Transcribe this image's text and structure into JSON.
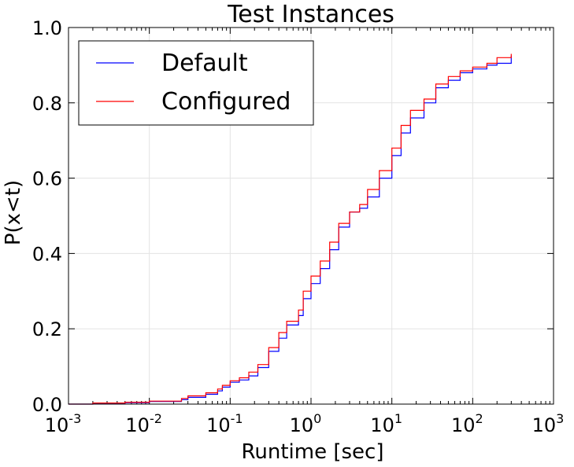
{
  "chart_data": {
    "type": "line",
    "title": "Test Instances",
    "xlabel": "Runtime [sec]",
    "ylabel": "P(x<t)",
    "xscale": "log",
    "xlim": [
      0.001,
      1000
    ],
    "ylim": [
      0.0,
      1.0
    ],
    "grid": true,
    "legend_position": "top-left",
    "x_ticks": [
      {
        "value": 0.001,
        "base": "10",
        "exp": "-3"
      },
      {
        "value": 0.01,
        "base": "10",
        "exp": "-2"
      },
      {
        "value": 0.1,
        "base": "10",
        "exp": "-1"
      },
      {
        "value": 1,
        "base": "10",
        "exp": "0"
      },
      {
        "value": 10,
        "base": "10",
        "exp": "1"
      },
      {
        "value": 100,
        "base": "10",
        "exp": "2"
      },
      {
        "value": 1000,
        "base": "10",
        "exp": "3"
      }
    ],
    "y_ticks": [
      {
        "value": 0.0,
        "label": "0.0"
      },
      {
        "value": 0.2,
        "label": "0.2"
      },
      {
        "value": 0.4,
        "label": "0.4"
      },
      {
        "value": 0.6,
        "label": "0.6"
      },
      {
        "value": 0.8,
        "label": "0.8"
      },
      {
        "value": 1.0,
        "label": "1.0"
      }
    ],
    "series": [
      {
        "name": "Default",
        "color": "#0000ff",
        "points": [
          [
            0.001,
            0.0
          ],
          [
            0.002,
            0.002
          ],
          [
            0.005,
            0.004
          ],
          [
            0.01,
            0.007
          ],
          [
            0.025,
            0.012
          ],
          [
            0.03,
            0.018
          ],
          [
            0.05,
            0.026
          ],
          [
            0.07,
            0.035
          ],
          [
            0.08,
            0.045
          ],
          [
            0.1,
            0.058
          ],
          [
            0.13,
            0.064
          ],
          [
            0.17,
            0.075
          ],
          [
            0.22,
            0.097
          ],
          [
            0.3,
            0.14
          ],
          [
            0.4,
            0.175
          ],
          [
            0.5,
            0.21
          ],
          [
            0.7,
            0.235
          ],
          [
            0.8,
            0.28
          ],
          [
            1.0,
            0.32
          ],
          [
            1.3,
            0.36
          ],
          [
            1.7,
            0.41
          ],
          [
            2.2,
            0.47
          ],
          [
            3.0,
            0.51
          ],
          [
            4.0,
            0.52
          ],
          [
            5.0,
            0.55
          ],
          [
            7.0,
            0.6
          ],
          [
            10.0,
            0.66
          ],
          [
            13.0,
            0.72
          ],
          [
            17.0,
            0.76
          ],
          [
            25.0,
            0.8
          ],
          [
            35.0,
            0.84
          ],
          [
            50.0,
            0.86
          ],
          [
            70.0,
            0.88
          ],
          [
            100.0,
            0.89
          ],
          [
            150.0,
            0.9
          ],
          [
            200.0,
            0.905
          ],
          [
            300.0,
            0.925
          ]
        ]
      },
      {
        "name": "Configured",
        "color": "#ff0000",
        "points": [
          [
            0.001,
            0.0
          ],
          [
            0.002,
            0.003
          ],
          [
            0.005,
            0.005
          ],
          [
            0.01,
            0.008
          ],
          [
            0.025,
            0.015
          ],
          [
            0.03,
            0.022
          ],
          [
            0.05,
            0.03
          ],
          [
            0.07,
            0.04
          ],
          [
            0.08,
            0.05
          ],
          [
            0.1,
            0.062
          ],
          [
            0.13,
            0.07
          ],
          [
            0.17,
            0.085
          ],
          [
            0.22,
            0.105
          ],
          [
            0.3,
            0.15
          ],
          [
            0.4,
            0.19
          ],
          [
            0.5,
            0.22
          ],
          [
            0.7,
            0.25
          ],
          [
            0.8,
            0.3
          ],
          [
            1.0,
            0.34
          ],
          [
            1.3,
            0.38
          ],
          [
            1.7,
            0.43
          ],
          [
            2.2,
            0.48
          ],
          [
            3.0,
            0.51
          ],
          [
            4.0,
            0.53
          ],
          [
            5.0,
            0.57
          ],
          [
            7.0,
            0.62
          ],
          [
            10.0,
            0.68
          ],
          [
            13.0,
            0.74
          ],
          [
            17.0,
            0.78
          ],
          [
            25.0,
            0.81
          ],
          [
            35.0,
            0.85
          ],
          [
            50.0,
            0.87
          ],
          [
            70.0,
            0.885
          ],
          [
            100.0,
            0.895
          ],
          [
            150.0,
            0.905
          ],
          [
            200.0,
            0.92
          ],
          [
            300.0,
            0.93
          ]
        ]
      }
    ]
  }
}
